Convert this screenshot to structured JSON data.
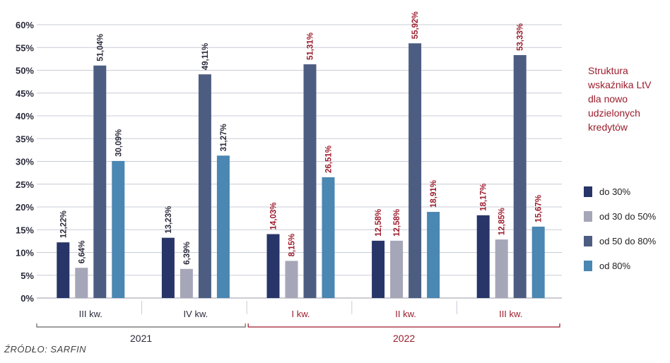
{
  "chart_data": {
    "type": "bar",
    "title": "Struktura wskaźnika LtV dla nowo udzielonych kredytów",
    "categories": [
      "III kw.",
      "IV kw.",
      "I kw.",
      "II kw.",
      "III kw."
    ],
    "groups": [
      {
        "label": "2021",
        "range": [
          0,
          1
        ]
      },
      {
        "label": "2022",
        "range": [
          2,
          4
        ]
      }
    ],
    "series": [
      {
        "name": "do 30%",
        "color": "#283568",
        "values": [
          12.22,
          13.23,
          14.03,
          12.58,
          18.17
        ],
        "labels": [
          "12,22%",
          "13,23%",
          "14,03%",
          "12,58%",
          "18,17%"
        ]
      },
      {
        "name": "od 30 do 50%",
        "color": "#a5a6b8",
        "values": [
          6.64,
          6.39,
          8.15,
          12.58,
          12.85
        ],
        "labels": [
          "6,64%",
          "6,39%",
          "8,15%",
          "12,58%",
          "12,85%"
        ]
      },
      {
        "name": "od 50 do 80%",
        "color": "#4d5d82",
        "values": [
          51.04,
          49.11,
          51.31,
          55.92,
          53.33
        ],
        "labels": [
          "51,04%",
          "49,11%",
          "51,31%",
          "55,92%",
          "53,33%"
        ]
      },
      {
        "name": "od 80%",
        "color": "#4a87b2",
        "values": [
          30.09,
          31.27,
          26.51,
          18.91,
          15.67
        ],
        "labels": [
          "30,09%",
          "31,27%",
          "26,51%",
          "18,91%",
          "15,67%"
        ]
      }
    ],
    "yticks": [
      "0%",
      "5%",
      "10%",
      "15%",
      "20%",
      "25%",
      "30%",
      "35%",
      "40%",
      "45%",
      "50%",
      "55%",
      "60%"
    ],
    "ylim": [
      0,
      60
    ],
    "grid": true,
    "legend_position": "right",
    "colors": {
      "label_2021": "#2b2b3c",
      "label_2022": "#9b1c2c",
      "bracket_2021": "#666666",
      "bracket_2022": "#9b1c2c"
    }
  },
  "source": "ŹRÓDŁO: SARFIN"
}
